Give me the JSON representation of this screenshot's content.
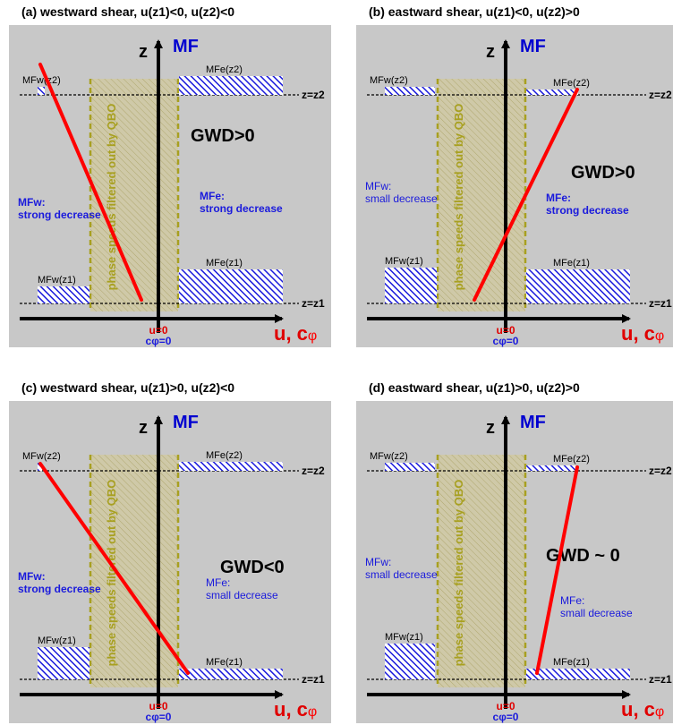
{
  "panels": [
    {
      "title": "(a) westward shear, u(z1)<0, u(z2)<0",
      "z_label": "z",
      "mf_label": "MF",
      "z2_label": "z=z2",
      "z1_label": "z=z1",
      "mfw_z2": "MFw(z2)",
      "mfe_z2": "MFe(z2)",
      "mfw_z1": "MFw(z1)",
      "mfe_z1": "MFe(z1)",
      "gwd": "GWD>0",
      "mfw_line1": "MFw:",
      "mfw_line2": "strong decrease",
      "mfw_strong": true,
      "mfe_line1": "MFe:",
      "mfe_line2": "strong decrease",
      "mfe_strong": true,
      "qbo": "phase speeds filtered out by QBO",
      "u0": "u=0",
      "c0": "cφ=0",
      "u_axis": "u, c",
      "phi": "φ"
    },
    {
      "title": "(b) eastward shear, u(z1)<0, u(z2)>0",
      "z_label": "z",
      "mf_label": "MF",
      "z2_label": "z=z2",
      "z1_label": "z=z1",
      "mfw_z2": "MFw(z2)",
      "mfe_z2": "MFe(z2)",
      "mfw_z1": "MFw(z1)",
      "mfe_z1": "MFe(z1)",
      "gwd": "GWD>0",
      "mfw_line1": "MFw:",
      "mfw_line2": "small decrease",
      "mfw_strong": false,
      "mfe_line1": "MFe:",
      "mfe_line2": "strong decrease",
      "mfe_strong": true,
      "qbo": "phase speeds filtered out by QBO",
      "u0": "u=0",
      "c0": "cφ=0",
      "u_axis": "u, c",
      "phi": "φ"
    },
    {
      "title": "(c) westward shear, u(z1)>0, u(z2)<0",
      "z_label": "z",
      "mf_label": "MF",
      "z2_label": "z=z2",
      "z1_label": "z=z1",
      "mfw_z2": "MFw(z2)",
      "mfe_z2": "MFe(z2)",
      "mfw_z1": "MFw(z1)",
      "mfe_z1": "MFe(z1)",
      "gwd": "GWD<0",
      "mfw_line1": "MFw:",
      "mfw_line2": "strong decrease",
      "mfw_strong": true,
      "mfe_line1": "MFe:",
      "mfe_line2": "small decrease",
      "mfe_strong": false,
      "qbo": "phase speeds filtered out by QBO",
      "u0": "u=0",
      "c0": "cφ=0",
      "u_axis": "u, c",
      "phi": "φ"
    },
    {
      "title": "(d) eastward shear, u(z1)>0, u(z2)>0",
      "z_label": "z",
      "mf_label": "MF",
      "z2_label": "z=z2",
      "z1_label": "z=z1",
      "mfw_z2": "MFw(z2)",
      "mfe_z2": "MFe(z2)",
      "mfw_z1": "MFw(z1)",
      "mfe_z1": "MFe(z1)",
      "gwd": "GWD ~ 0",
      "mfw_line1": "MFw:",
      "mfw_line2": "small decrease",
      "mfw_strong": false,
      "mfe_line1": "MFe:",
      "mfe_line2": "small decrease",
      "mfe_strong": false,
      "qbo": "phase speeds filtered out by QBO",
      "u0": "u=0",
      "c0": "cφ=0",
      "u_axis": "u, c",
      "phi": "φ"
    }
  ],
  "colors": {
    "panel_bg": "#c8c8c8",
    "mf_bar": "#1a1adc",
    "qbo_band": "#a8a020",
    "red_line": "#ff0000",
    "axis": "#000000"
  }
}
